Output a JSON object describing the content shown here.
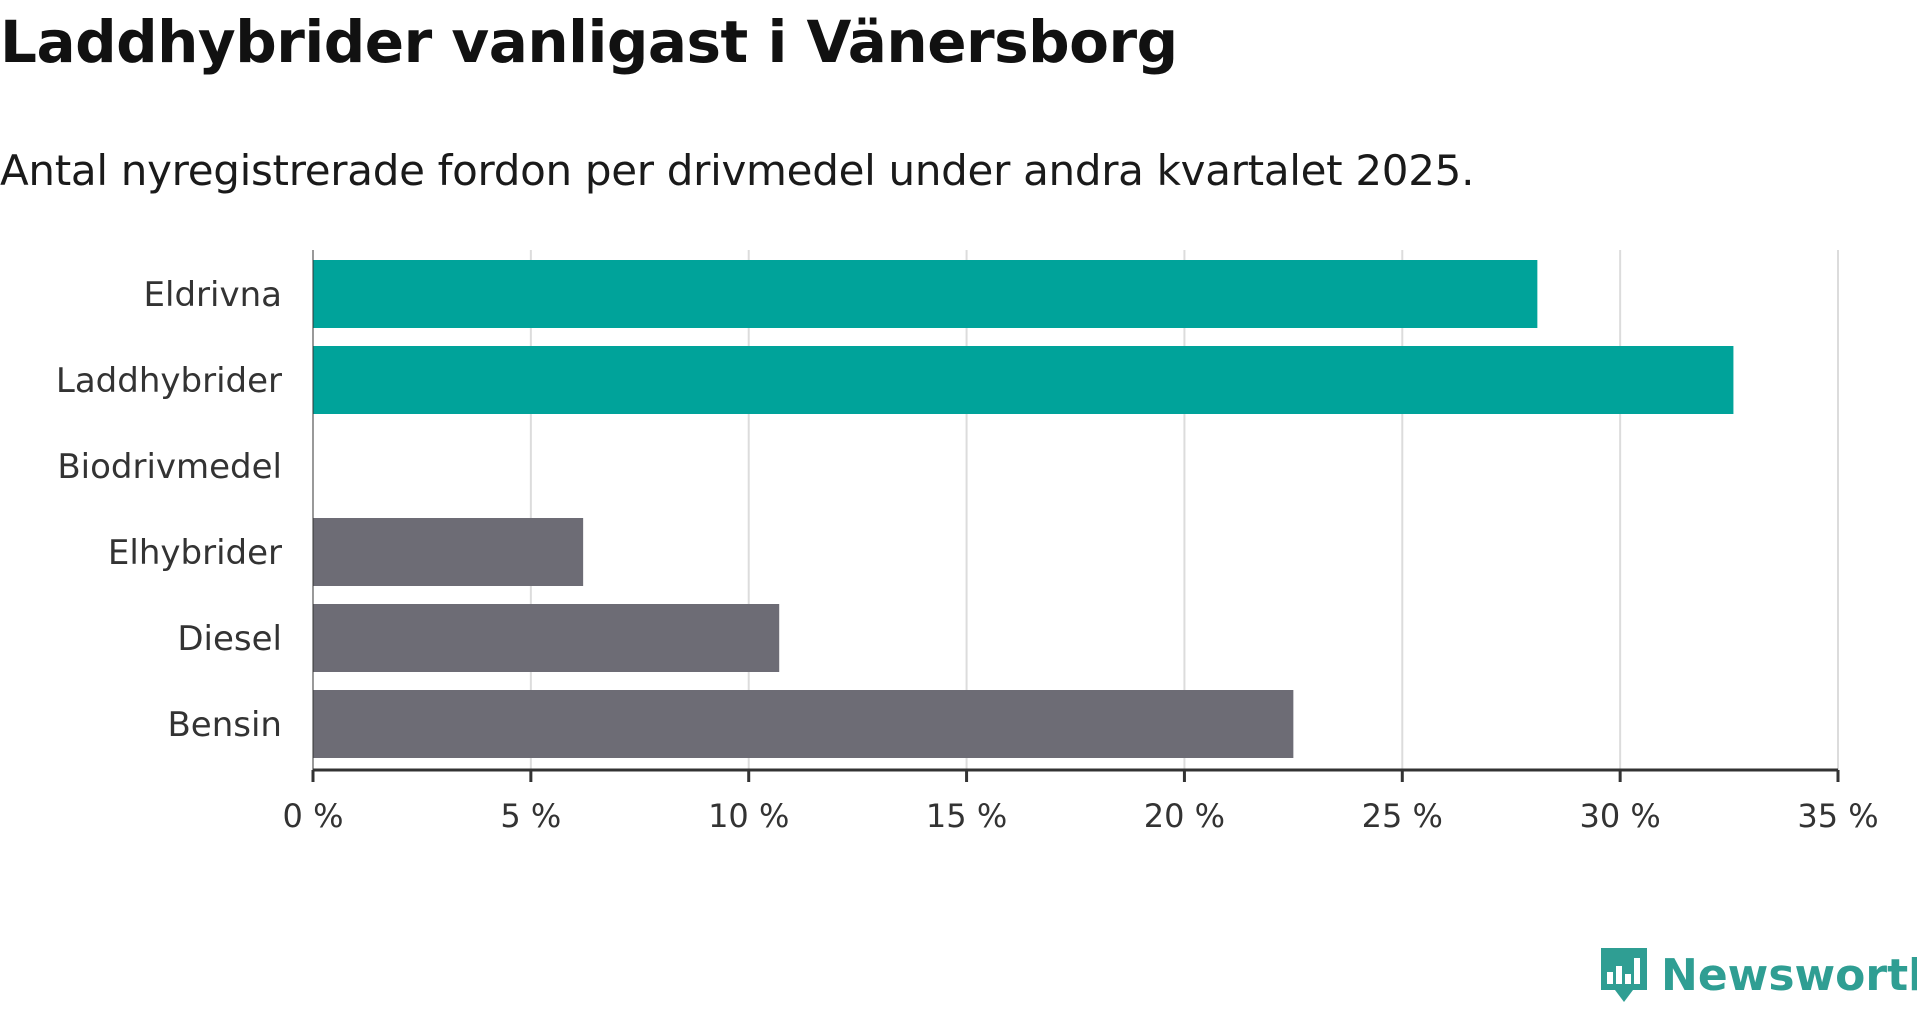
{
  "title": "Laddhybrider vanligast i Vänersborg",
  "subtitle": "Antal nyregistrerade fordon per drivmedel under andra kvartalet 2025.",
  "brand": {
    "name": "Newsworthy",
    "logo_icon": "bar-chart-speech-bubble-icon"
  },
  "colors": {
    "highlight": "#00a39a",
    "default": "#6d6c75",
    "grid": "#dcdcdc",
    "axis": "#333333",
    "brand": "#2f9e93"
  },
  "chart_data": {
    "type": "bar",
    "orientation": "horizontal",
    "categories": [
      "Eldrivna",
      "Laddhybrider",
      "Biodrivmedel",
      "Elhybrider",
      "Diesel",
      "Bensin"
    ],
    "values": [
      28.1,
      32.6,
      0,
      6.2,
      10.7,
      22.5
    ],
    "highlighted": [
      true,
      true,
      false,
      false,
      false,
      false
    ],
    "unit": "%",
    "xlim": [
      0,
      35
    ],
    "xticks": [
      0,
      5,
      10,
      15,
      20,
      25,
      30,
      35
    ],
    "xtick_labels": [
      "0 %",
      "5 %",
      "10 %",
      "15 %",
      "20 %",
      "25 %",
      "30 %",
      "35 %"
    ],
    "xlabel": "",
    "ylabel": "",
    "grid": "vertical",
    "legend": "none"
  }
}
